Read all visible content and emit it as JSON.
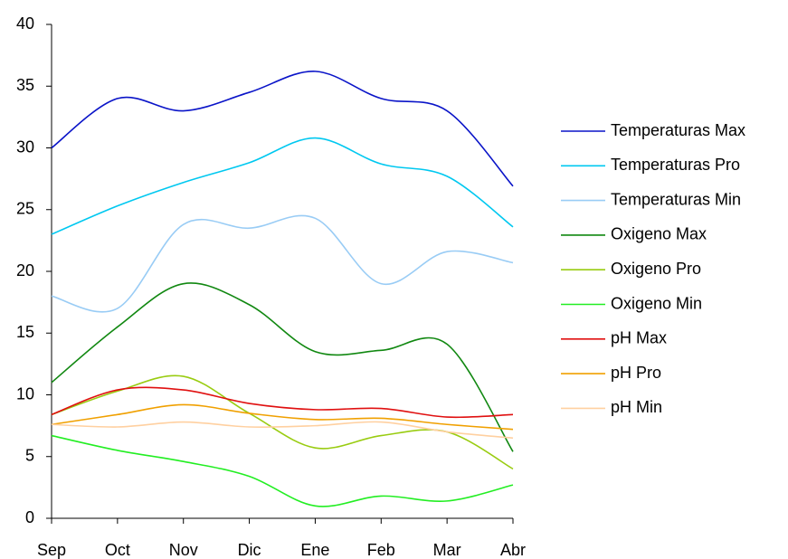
{
  "chart_data": {
    "type": "line",
    "categories": [
      "Sep",
      "Oct",
      "Nov",
      "Dic",
      "Ene",
      "Feb",
      "Mar",
      "Abr"
    ],
    "series": [
      {
        "name": "Temperaturas Max",
        "color": "#0a14c8",
        "values": [
          30,
          34,
          33,
          34.5,
          36.2,
          34,
          33,
          26.9
        ]
      },
      {
        "name": "Temperaturas Pro",
        "color": "#00c8f0",
        "values": [
          23,
          25.3,
          27.2,
          28.8,
          30.8,
          28.7,
          27.7,
          23.6
        ]
      },
      {
        "name": "Temperaturas Min",
        "color": "#99ccf5",
        "values": [
          18,
          17,
          23.8,
          23.5,
          24.3,
          19,
          21.6,
          20.7
        ]
      },
      {
        "name": "Oxigeno Max",
        "color": "#118811",
        "values": [
          11,
          15.5,
          19,
          17.3,
          13.5,
          13.6,
          14.1,
          5.4
        ]
      },
      {
        "name": "Oxigeno Pro",
        "color": "#99cc11",
        "values": [
          8.4,
          10.3,
          11.5,
          8.5,
          5.7,
          6.7,
          7.0,
          4.0
        ]
      },
      {
        "name": "Oxigeno Min",
        "color": "#22ee22",
        "values": [
          6.7,
          5.5,
          4.6,
          3.4,
          1.0,
          1.8,
          1.4,
          2.7
        ]
      },
      {
        "name": "pH Max",
        "color": "#e01010",
        "values": [
          8.4,
          10.4,
          10.4,
          9.3,
          8.8,
          8.9,
          8.2,
          8.4
        ]
      },
      {
        "name": "pH Pro",
        "color": "#f0a000",
        "values": [
          7.6,
          8.4,
          9.2,
          8.5,
          8.0,
          8.1,
          7.6,
          7.2
        ]
      },
      {
        "name": "pH Min",
        "color": "#ffd0a0",
        "values": [
          7.6,
          7.4,
          7.8,
          7.4,
          7.5,
          7.8,
          7.0,
          6.5
        ]
      }
    ],
    "ylim": [
      0,
      40
    ],
    "yticks": [
      0,
      5,
      10,
      15,
      20,
      25,
      30,
      35,
      40
    ],
    "grid": false,
    "legend": "right"
  }
}
